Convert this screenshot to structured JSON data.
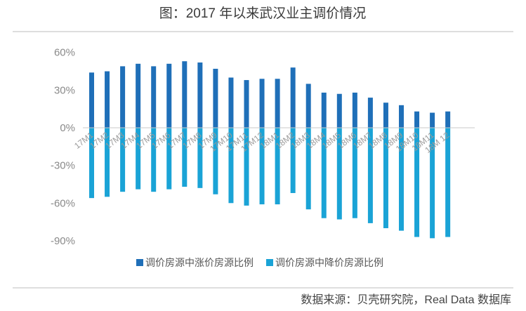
{
  "chart_data": {
    "type": "bar",
    "title": "图：2017 年以来武汉业主调价情况",
    "categories": [
      "17M1",
      "17M2",
      "17M3",
      "17M4",
      "17M5",
      "17M6",
      "17M7",
      "17M8",
      "17M9",
      "17M10",
      "17M11",
      "17M12",
      "18M1",
      "18M2",
      "18M3",
      "18M4",
      "18M5",
      "18M6",
      "18M7",
      "18M8",
      "18M9",
      "18M10",
      "18M11",
      "18M 12"
    ],
    "series": [
      {
        "name": "调价房源中涨价房源比例",
        "color": "#1f6fb8",
        "values": [
          44,
          45,
          49,
          51,
          49,
          51,
          53,
          52,
          47,
          40,
          38,
          39,
          39,
          48,
          35,
          28,
          27,
          28,
          24,
          20,
          18,
          13,
          12,
          13
        ]
      },
      {
        "name": "调价房源中降价房源比例",
        "color": "#1aa3d6",
        "values": [
          -56,
          -55,
          -51,
          -49,
          -51,
          -49,
          -47,
          -48,
          -53,
          -60,
          -62,
          -61,
          -61,
          -52,
          -65,
          -72,
          -73,
          -72,
          -76,
          -80,
          -82,
          -87,
          -88,
          -87
        ]
      }
    ],
    "yticks": [
      "60%",
      "30%",
      "0%",
      "-30%",
      "-60%",
      "-90%"
    ],
    "ylim": [
      -90,
      60
    ],
    "legend_position": "bottom",
    "grid": false
  },
  "source_text": "数据来源：贝壳研究院，Real Data 数据库"
}
